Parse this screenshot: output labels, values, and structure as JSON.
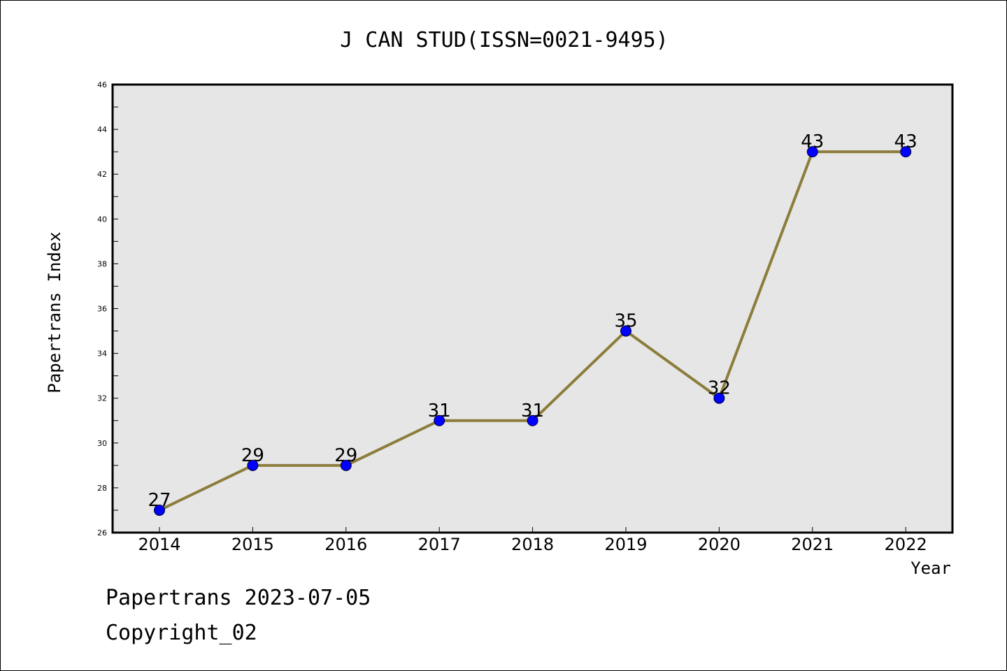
{
  "chart_data": {
    "type": "line",
    "title": "J CAN STUD(ISSN=0021-9495)",
    "xlabel": "Year",
    "ylabel": "Papertrans Index",
    "x": [
      "2014",
      "2015",
      "2016",
      "2017",
      "2018",
      "2019",
      "2020",
      "2021",
      "2022"
    ],
    "series": [
      {
        "values": [
          27,
          29,
          29,
          31,
          31,
          35,
          32,
          43,
          43
        ]
      }
    ],
    "ylim": [
      26,
      46
    ],
    "y_ticks": [
      "26",
      "28",
      "30",
      "32",
      "34",
      "36",
      "38",
      "40",
      "42",
      "44",
      "46"
    ],
    "grid": false,
    "line_color": "#8c7d3c",
    "marker_color": "#0000ff",
    "plot_background": "#e6e6e6"
  },
  "footer": {
    "line1": "Papertrans 2023-07-05",
    "line2": "Copyright_02"
  }
}
